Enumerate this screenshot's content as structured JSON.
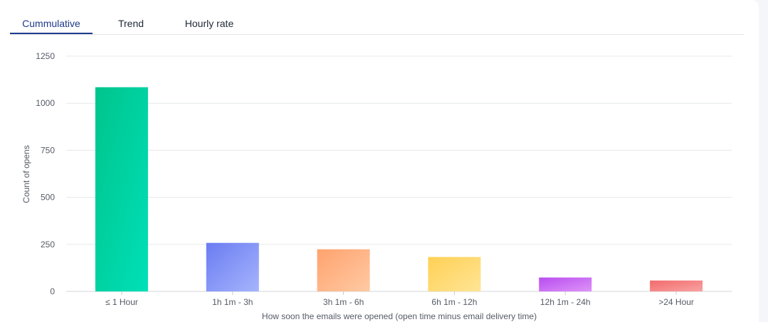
{
  "tabs": [
    {
      "label": "Cummulative",
      "active": true
    },
    {
      "label": "Trend",
      "active": false
    },
    {
      "label": "Hourly rate",
      "active": false
    }
  ],
  "colors": {
    "active_tab": "#1e3a8a",
    "gridline": "#e6e8eb"
  },
  "chart_data": {
    "type": "bar",
    "categories": [
      "≤ 1 Hour",
      "1h 1m - 3h",
      "3h 1m - 6h",
      "6h 1m - 12h",
      "12h 1m - 24h",
      ">24 Hour"
    ],
    "values": [
      1085,
      258,
      224,
      183,
      74,
      58
    ],
    "xlabel": "How soon the emails were opened (open time minus email delivery time)",
    "ylabel": "Count of opens",
    "ylim": [
      0,
      1250
    ],
    "yticks": [
      0,
      250,
      500,
      750,
      1000,
      1250
    ],
    "ytick_labels": [
      "0",
      "250",
      "500",
      "750",
      "1000",
      "1250"
    ],
    "grid": true,
    "bar_gradients": [
      [
        "#00c48c",
        "#00e0b8"
      ],
      [
        "#6a7cf2",
        "#a6b4fc"
      ],
      [
        "#ffa26e",
        "#ffcaa3"
      ],
      [
        "#ffd054",
        "#ffe596"
      ],
      [
        "#b84df0",
        "#de94f8"
      ],
      [
        "#f26b6b",
        "#f9a3a3"
      ]
    ]
  }
}
